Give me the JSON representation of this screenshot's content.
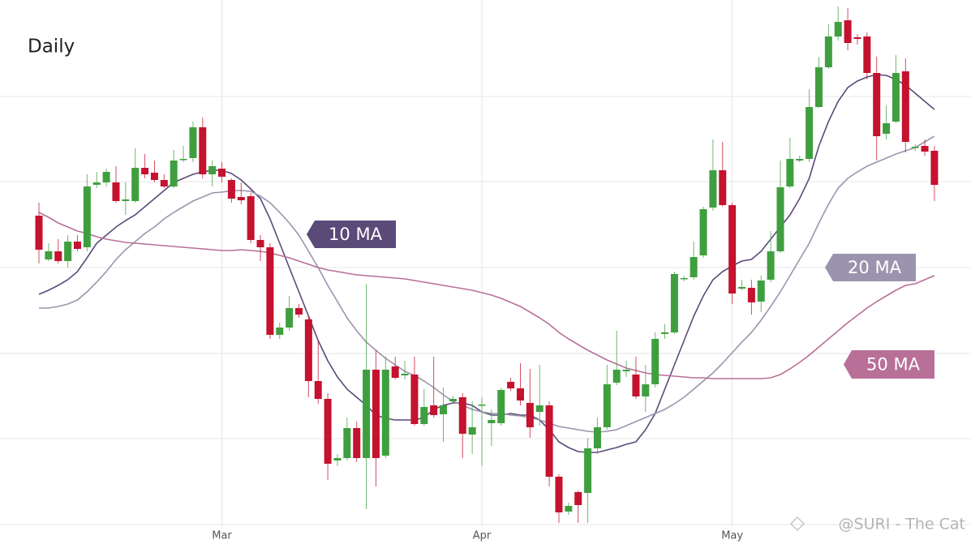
{
  "chart_data": {
    "type": "candlestick",
    "title": "Daily",
    "watermark": "@SURI - The Cat",
    "categories": [
      null,
      null,
      null,
      null,
      null,
      null,
      null,
      null,
      null,
      null,
      null,
      null,
      null,
      null,
      null,
      null,
      null,
      null,
      null,
      "Mar",
      null,
      null,
      null,
      null,
      null,
      null,
      null,
      null,
      null,
      null,
      null,
      null,
      null,
      null,
      null,
      null,
      null,
      null,
      null,
      null,
      null,
      null,
      null,
      null,
      null,
      null,
      "Apr",
      null,
      null,
      null,
      null,
      null,
      null,
      null,
      null,
      null,
      null,
      null,
      null,
      null,
      null,
      null,
      null,
      null,
      null,
      null,
      null,
      null,
      null,
      null,
      null,
      null,
      "May",
      null,
      null,
      null,
      null,
      null,
      null,
      null,
      null,
      null,
      null,
      null,
      null,
      null,
      null,
      null,
      null,
      null,
      null,
      null,
      null,
      null
    ],
    "open": [
      405,
      351,
      361,
      349,
      373,
      366,
      443,
      446,
      446,
      423,
      423,
      464,
      458,
      449,
      441,
      474,
      476,
      514,
      456,
      463,
      449,
      428,
      429,
      375,
      366,
      258,
      267,
      291,
      277,
      201,
      179,
      103,
      106,
      143,
      106,
      215,
      109,
      219,
      208,
      209,
      148,
      171,
      160,
      176,
      181,
      135,
      171,
      149,
      149,
      200,
      192,
      174,
      163,
      171,
      83,
      40,
      64,
      63,
      118,
      144,
      199,
      213,
      209,
      182,
      197,
      259,
      261,
      327,
      329,
      356,
      415,
      461,
      418,
      315,
      316,
      299,
      326,
      361,
      441,
      473,
      475,
      539,
      588,
      626,
      646,
      625,
      626,
      581,
      506,
      521,
      583,
      489,
      491,
      485
    ],
    "high": [
      421,
      371,
      376,
      381,
      381,
      456,
      459,
      463,
      466,
      446,
      488,
      481,
      473,
      456,
      486,
      491,
      521,
      526,
      473,
      471,
      451,
      446,
      433,
      381,
      371,
      273,
      306,
      296,
      281,
      251,
      186,
      111,
      156,
      151,
      321,
      239,
      231,
      231,
      226,
      231,
      191,
      231,
      193,
      183,
      186,
      176,
      181,
      166,
      193,
      205,
      223,
      216,
      221,
      176,
      86,
      51,
      66,
      131,
      156,
      221,
      263,
      226,
      231,
      221,
      261,
      271,
      336,
      331,
      373,
      416,
      499,
      496,
      421,
      326,
      326,
      331,
      386,
      473,
      501,
      479,
      561,
      601,
      641,
      663,
      661,
      629,
      631,
      601,
      541,
      603,
      599,
      493,
      499,
      491
    ],
    "low": [
      346,
      349,
      346,
      341,
      361,
      361,
      439,
      441,
      421,
      406,
      421,
      451,
      446,
      439,
      439,
      471,
      471,
      451,
      441,
      446,
      421,
      419,
      371,
      349,
      253,
      253,
      263,
      279,
      181,
      173,
      79,
      96,
      103,
      101,
      43,
      71,
      106,
      203,
      203,
      146,
      146,
      156,
      126,
      173,
      106,
      111,
      96,
      121,
      146,
      189,
      171,
      131,
      146,
      71,
      26,
      36,
      26,
      26,
      111,
      141,
      196,
      206,
      179,
      163,
      193,
      253,
      259,
      324,
      326,
      353,
      411,
      416,
      296,
      313,
      283,
      286,
      323,
      359,
      439,
      471,
      471,
      538,
      586,
      621,
      609,
      616,
      573,
      473,
      499,
      519,
      483,
      485,
      479,
      423
    ],
    "close": [
      363,
      361,
      349,
      373,
      364,
      441,
      446,
      459,
      423,
      425,
      464,
      456,
      449,
      441,
      473,
      475,
      514,
      456,
      466,
      453,
      426,
      424,
      375,
      366,
      258,
      267,
      291,
      283,
      201,
      179,
      99,
      106,
      143,
      106,
      215,
      106,
      215,
      205,
      210,
      148,
      169,
      159,
      171,
      179,
      136,
      144,
      172,
      153,
      190,
      192,
      177,
      144,
      171,
      83,
      39,
      47,
      48,
      118,
      144,
      197,
      215,
      215,
      182,
      197,
      253,
      261,
      333,
      328,
      354,
      413,
      461,
      418,
      309,
      317,
      298,
      325,
      361,
      440,
      475,
      475,
      539,
      588,
      626,
      644,
      618,
      623,
      581,
      503,
      519,
      581,
      496,
      490,
      484,
      443
    ],
    "up_color": "#3f9f3f",
    "down_color": "#c4122f",
    "series": [
      {
        "name": "10 MA",
        "color": "#5a4a78",
        "values": [
          308,
          313,
          319,
          326,
          336,
          353,
          371,
          381,
          391,
          399,
          406,
          416,
          426,
          436,
          446,
          451,
          456,
          459,
          461,
          461,
          457,
          449,
          438,
          426,
          401,
          371,
          341,
          311,
          281,
          251,
          226,
          206,
          191,
          181,
          171,
          159,
          155,
          153,
          153,
          153,
          156,
          166,
          171,
          174,
          174,
          171,
          163,
          159,
          159,
          161,
          159,
          159,
          153,
          141,
          126,
          119,
          114,
          113,
          113,
          116,
          119,
          123,
          126,
          141,
          161,
          191,
          221,
          251,
          281,
          306,
          326,
          336,
          343,
          349,
          351,
          361,
          376,
          391,
          406,
          426,
          451,
          491,
          521,
          546,
          563,
          571,
          576,
          579,
          578,
          573,
          566,
          556,
          546,
          536
        ]
      },
      {
        "name": "20 MA",
        "color": "#9c94ae",
        "values": [
          291,
          291,
          293,
          296,
          301,
          311,
          323,
          336,
          351,
          363,
          373,
          383,
          391,
          401,
          409,
          416,
          423,
          428,
          433,
          434,
          436,
          436,
          435,
          429,
          421,
          409,
          396,
          381,
          361,
          341,
          319,
          299,
          279,
          263,
          249,
          239,
          229,
          221,
          213,
          208,
          201,
          193,
          184,
          176,
          171,
          166,
          163,
          161,
          161,
          159,
          158,
          156,
          153,
          149,
          145,
          143,
          141,
          139,
          138,
          139,
          141,
          146,
          151,
          156,
          161,
          166,
          173,
          181,
          191,
          201,
          211,
          223,
          236,
          249,
          261,
          276,
          293,
          311,
          331,
          351,
          371,
          396,
          419,
          439,
          451,
          459,
          466,
          471,
          476,
          481,
          485,
          489,
          496,
          503
        ]
      },
      {
        "name": "50 MA",
        "color": "#b86f98",
        "values": [
          409,
          403,
          396,
          391,
          386,
          383,
          379,
          376,
          374,
          372,
          371,
          370,
          369,
          368,
          367,
          366,
          365,
          364,
          363,
          362,
          362,
          363,
          362,
          361,
          359,
          356,
          353,
          349,
          345,
          341,
          338,
          336,
          334,
          332,
          331,
          330,
          329,
          328,
          327,
          325,
          323,
          321,
          319,
          317,
          315,
          313,
          310,
          307,
          303,
          298,
          293,
          286,
          279,
          271,
          261,
          253,
          246,
          239,
          233,
          227,
          222,
          217,
          214,
          211,
          209,
          208,
          207,
          206,
          205,
          205,
          204,
          204,
          204,
          204,
          204,
          204,
          205,
          209,
          216,
          224,
          233,
          243,
          253,
          263,
          273,
          282,
          291,
          299,
          306,
          313,
          319,
          321,
          326,
          331
        ]
      }
    ],
    "ylim": [
      0,
      671
    ],
    "yticks": [
      24,
      130,
      235,
      341,
      447,
      552
    ],
    "grid": true
  }
}
